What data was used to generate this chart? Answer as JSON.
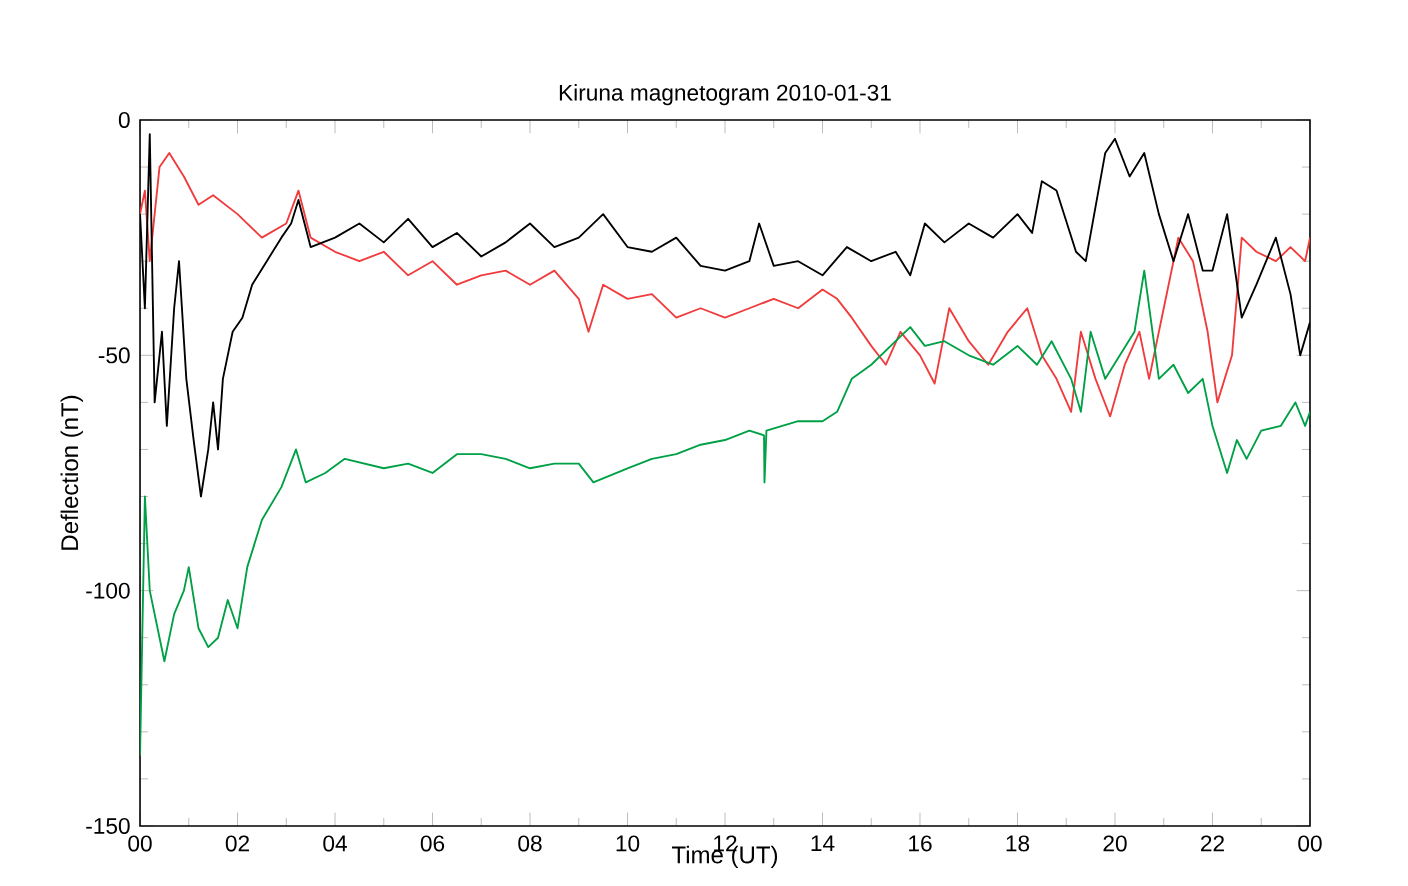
{
  "chart_data": {
    "type": "line",
    "title": "Kiruna magnetogram 2010-01-31",
    "xlabel": "Time (UT)",
    "ylabel": "Deflection (nT)",
    "xlim": [
      0,
      24
    ],
    "ylim": [
      -150,
      0
    ],
    "xticks": [
      {
        "value": 0,
        "label": "00"
      },
      {
        "value": 2,
        "label": "02"
      },
      {
        "value": 4,
        "label": "04"
      },
      {
        "value": 6,
        "label": "06"
      },
      {
        "value": 8,
        "label": "08"
      },
      {
        "value": 10,
        "label": "10"
      },
      {
        "value": 12,
        "label": "12"
      },
      {
        "value": 14,
        "label": "14"
      },
      {
        "value": 16,
        "label": "16"
      },
      {
        "value": 18,
        "label": "18"
      },
      {
        "value": 20,
        "label": "20"
      },
      {
        "value": 22,
        "label": "22"
      },
      {
        "value": 24,
        "label": "00"
      }
    ],
    "yticks": [
      -150,
      -100,
      -50,
      0
    ],
    "marker": "none",
    "line_style": "solid",
    "series": [
      {
        "color": "#f03c3c",
        "x": [
          0,
          0.1,
          0.2,
          0.4,
          0.6,
          0.9,
          1.2,
          1.5,
          2.0,
          2.5,
          3.0,
          3.25,
          3.5,
          4,
          4.5,
          5,
          5.5,
          6,
          6.5,
          7,
          7.5,
          8,
          8.5,
          9,
          9.2,
          9.5,
          10,
          10.5,
          11,
          11.5,
          12,
          12.5,
          13,
          13.5,
          14,
          14.3,
          14.6,
          15,
          15.3,
          15.6,
          16.0,
          16.3,
          16.6,
          17.0,
          17.4,
          17.8,
          18.2,
          18.5,
          18.8,
          19.1,
          19.3,
          19.6,
          19.9,
          20.2,
          20.5,
          20.7,
          21.0,
          21.3,
          21.6,
          21.9,
          22.1,
          22.4,
          22.6,
          22.9,
          23.3,
          23.6,
          23.9,
          24
        ],
        "values": [
          -20,
          -15,
          -30,
          -10,
          -7,
          -12,
          -18,
          -16,
          -20,
          -25,
          -22,
          -15,
          -25,
          -28,
          -30,
          -28,
          -33,
          -30,
          -35,
          -33,
          -32,
          -35,
          -32,
          -38,
          -45,
          -35,
          -38,
          -37,
          -42,
          -40,
          -42,
          -40,
          -38,
          -40,
          -36,
          -38,
          -42,
          -48,
          -52,
          -45,
          -50,
          -56,
          -40,
          -47,
          -52,
          -45,
          -40,
          -50,
          -55,
          -62,
          -45,
          -55,
          -63,
          -52,
          -45,
          -55,
          -40,
          -25,
          -30,
          -45,
          -60,
          -50,
          -25,
          -28,
          -30,
          -27,
          -30,
          -25
        ]
      },
      {
        "color": "#00a046",
        "x": [
          0,
          0.1,
          0.2,
          0.5,
          0.7,
          0.9,
          1.0,
          1.2,
          1.4,
          1.6,
          1.8,
          2.0,
          2.2,
          2.5,
          2.9,
          3.2,
          3.4,
          3.8,
          4.2,
          5,
          5.5,
          6.0,
          6.5,
          7.0,
          7.5,
          8.0,
          8.5,
          9.0,
          9.3,
          10,
          10.5,
          11,
          11.5,
          12,
          12.5,
          12.8,
          12.81,
          12.85,
          13.5,
          14,
          14.3,
          14.6,
          15,
          15.5,
          15.8,
          16.1,
          16.5,
          17,
          17.5,
          18,
          18.4,
          18.7,
          19.1,
          19.3,
          19.5,
          19.8,
          20.1,
          20.4,
          20.6,
          20.9,
          21.2,
          21.5,
          21.8,
          22.0,
          22.3,
          22.5,
          22.7,
          23.0,
          23.4,
          23.7,
          23.9,
          24
        ],
        "values": [
          -135,
          -80,
          -100,
          -115,
          -105,
          -100,
          -95,
          -108,
          -112,
          -110,
          -102,
          -108,
          -95,
          -85,
          -78,
          -70,
          -77,
          -75,
          -72,
          -74,
          -73,
          -75,
          -71,
          -71,
          -72,
          -74,
          -73,
          -73,
          -77,
          -74,
          -72,
          -71,
          -69,
          -68,
          -66,
          -67,
          -77,
          -66,
          -64,
          -64,
          -62,
          -55,
          -52,
          -47,
          -44,
          -48,
          -47,
          -50,
          -52,
          -48,
          -52,
          -47,
          -55,
          -62,
          -45,
          -55,
          -50,
          -45,
          -32,
          -55,
          -52,
          -58,
          -55,
          -65,
          -75,
          -68,
          -72,
          -66,
          -65,
          -60,
          -65,
          -62
        ]
      },
      {
        "color": "#000000",
        "x": [
          0.0,
          0.1,
          0.2,
          0.3,
          0.45,
          0.55,
          0.7,
          0.8,
          0.95,
          1.1,
          1.25,
          1.4,
          1.5,
          1.6,
          1.7,
          1.9,
          2.1,
          2.3,
          2.6,
          2.9,
          3.1,
          3.25,
          3.5,
          4.0,
          4.5,
          5.0,
          5.5,
          6.0,
          6.5,
          7.0,
          7.5,
          8.0,
          8.5,
          9.0,
          9.5,
          10.0,
          10.5,
          11.0,
          11.5,
          12.0,
          12.5,
          12.7,
          13.0,
          13.5,
          14.0,
          14.5,
          15.0,
          15.5,
          15.8,
          16.1,
          16.5,
          17.0,
          17.5,
          18.0,
          18.3,
          18.5,
          18.8,
          19.2,
          19.4,
          19.8,
          20.0,
          20.3,
          20.6,
          20.9,
          21.2,
          21.5,
          21.8,
          22.0,
          22.3,
          22.6,
          22.9,
          23.3,
          23.6,
          23.8,
          24.0
        ],
        "values": [
          -20,
          -40,
          -3,
          -60,
          -45,
          -65,
          -40,
          -30,
          -55,
          -68,
          -80,
          -70,
          -60,
          -70,
          -55,
          -45,
          -42,
          -35,
          -30,
          -25,
          -22,
          -17,
          -27,
          -25,
          -22,
          -26,
          -21,
          -27,
          -24,
          -29,
          -26,
          -22,
          -27,
          -25,
          -20,
          -27,
          -28,
          -25,
          -31,
          -32,
          -30,
          -22,
          -31,
          -30,
          -33,
          -27,
          -30,
          -28,
          -33,
          -22,
          -26,
          -22,
          -25,
          -20,
          -24,
          -13,
          -15,
          -28,
          -30,
          -7,
          -4,
          -12,
          -7,
          -20,
          -30,
          -20,
          -32,
          -32,
          -20,
          -42,
          -35,
          -25,
          -37,
          -50,
          -43
        ]
      }
    ]
  }
}
